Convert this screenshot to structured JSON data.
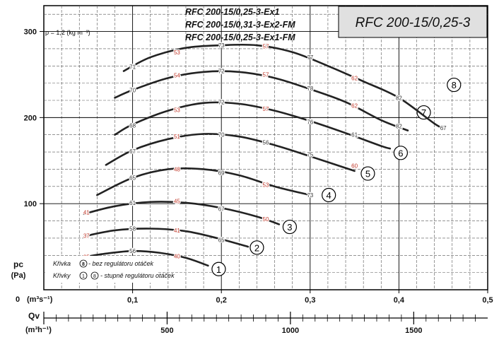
{
  "chart_data": {
    "type": "line",
    "title": "RFC 200-15/0,25-3",
    "variants": [
      "RFC 200-15/0,25-3-Ex1",
      "RFC 200-15/0,31-3-Ex2-FM",
      "RFC 200-15/0,25-3-Ex1-FM"
    ],
    "density_note": "ρ = 1,2 (kg m⁻³)",
    "xlabel": "(m³s⁻¹)",
    "x_symbol": "0",
    "x2_symbol": "Qv",
    "x2label": "(m³h⁻¹)",
    "ylabel_symbol": "pc",
    "ylabel_unit": "(Pa)",
    "xlim": [
      0,
      0.5
    ],
    "ylim": [
      0,
      330
    ],
    "x_ticks": [
      "0,1",
      "0,2",
      "0,3",
      "0,4",
      "0,5"
    ],
    "x_tick_values": [
      0.1,
      0.2,
      0.3,
      0.4,
      0.5
    ],
    "y_ticks": [
      "100",
      "200",
      "300"
    ],
    "y_tick_values": [
      100,
      200,
      300
    ],
    "x2_ticks": [
      "500",
      "1000",
      "1500"
    ],
    "x2_tick_values": [
      500,
      1000,
      1500
    ],
    "grid": true,
    "legend": {
      "line1_prefix": "Křivka",
      "line1_marker": "8",
      "line1_text": "- bez regulátoru otáček",
      "line2_prefix": "Křivky",
      "line2_marker_a": "1",
      "line2_marker_b": "8",
      "line2_text": "- stupně regulátoru otáček"
    },
    "series": [
      {
        "name": "1",
        "label_at": [
          0.197,
          24
        ],
        "points": [
          [
            0.045,
            38
          ],
          [
            0.07,
            42
          ],
          [
            0.1,
            45
          ],
          [
            0.13,
            43
          ],
          [
            0.16,
            37
          ],
          [
            0.185,
            28
          ]
        ],
        "labels": [
          {
            "text": "35",
            "x": 0.048,
            "y": 38
          },
          {
            "text": "56",
            "x": 0.1,
            "y": 45
          },
          {
            "text": "40",
            "x": 0.15,
            "y": 39
          }
        ]
      },
      {
        "name": "2",
        "label_at": [
          0.24,
          49
        ],
        "points": [
          [
            0.045,
            62
          ],
          [
            0.08,
            69
          ],
          [
            0.12,
            71
          ],
          [
            0.16,
            68
          ],
          [
            0.195,
            60
          ],
          [
            0.23,
            50
          ]
        ],
        "labels": [
          {
            "text": "37",
            "x": 0.048,
            "y": 63
          },
          {
            "text": "58",
            "x": 0.1,
            "y": 71
          },
          {
            "text": "41",
            "x": 0.15,
            "y": 69
          },
          {
            "text": "65",
            "x": 0.2,
            "y": 58
          }
        ]
      },
      {
        "name": "3",
        "label_at": [
          0.277,
          73
        ],
        "points": [
          [
            0.045,
            88
          ],
          [
            0.08,
            97
          ],
          [
            0.12,
            102
          ],
          [
            0.16,
            101
          ],
          [
            0.2,
            95
          ],
          [
            0.24,
            85
          ],
          [
            0.265,
            76
          ]
        ],
        "labels": [
          {
            "text": "41",
            "x": 0.048,
            "y": 90
          },
          {
            "text": "61",
            "x": 0.1,
            "y": 101
          },
          {
            "text": "45",
            "x": 0.15,
            "y": 103
          },
          {
            "text": "67",
            "x": 0.2,
            "y": 94
          },
          {
            "text": "50",
            "x": 0.25,
            "y": 82
          }
        ]
      },
      {
        "name": "4",
        "label_at": [
          0.321,
          110
        ],
        "points": [
          [
            0.06,
            110
          ],
          [
            0.1,
            130
          ],
          [
            0.14,
            140
          ],
          [
            0.18,
            140
          ],
          [
            0.22,
            133
          ],
          [
            0.26,
            120
          ],
          [
            0.3,
            110
          ]
        ],
        "labels": [
          {
            "text": "65",
            "x": 0.1,
            "y": 130
          },
          {
            "text": "48",
            "x": 0.15,
            "y": 140
          },
          {
            "text": "69",
            "x": 0.2,
            "y": 136
          },
          {
            "text": "53",
            "x": 0.25,
            "y": 122
          },
          {
            "text": "73",
            "x": 0.3,
            "y": 110
          }
        ]
      },
      {
        "name": "5",
        "label_at": [
          0.365,
          135
        ],
        "points": [
          [
            0.07,
            145
          ],
          [
            0.1,
            162
          ],
          [
            0.14,
            175
          ],
          [
            0.18,
            181
          ],
          [
            0.22,
            178
          ],
          [
            0.26,
            168
          ],
          [
            0.3,
            155
          ],
          [
            0.35,
            138
          ]
        ],
        "labels": [
          {
            "text": "67",
            "x": 0.1,
            "y": 161
          },
          {
            "text": "51",
            "x": 0.15,
            "y": 178
          },
          {
            "text": "70",
            "x": 0.2,
            "y": 180
          },
          {
            "text": "56",
            "x": 0.25,
            "y": 171
          },
          {
            "text": "75",
            "x": 0.3,
            "y": 157
          },
          {
            "text": "60",
            "x": 0.35,
            "y": 144
          }
        ]
      },
      {
        "name": "6",
        "label_at": [
          0.402,
          159
        ],
        "points": [
          [
            0.08,
            180
          ],
          [
            0.1,
            192
          ],
          [
            0.14,
            208
          ],
          [
            0.18,
            217
          ],
          [
            0.22,
            216
          ],
          [
            0.26,
            208
          ],
          [
            0.3,
            196
          ],
          [
            0.34,
            182
          ],
          [
            0.38,
            167
          ],
          [
            0.39,
            164
          ]
        ],
        "labels": [
          {
            "text": "68",
            "x": 0.1,
            "y": 191
          },
          {
            "text": "53",
            "x": 0.15,
            "y": 209
          },
          {
            "text": "72",
            "x": 0.2,
            "y": 218
          },
          {
            "text": "57",
            "x": 0.25,
            "y": 210
          },
          {
            "text": "76",
            "x": 0.3,
            "y": 195
          },
          {
            "text": "61",
            "x": 0.35,
            "y": 180
          }
        ]
      },
      {
        "name": "7",
        "label_at": [
          0.428,
          206
        ],
        "points": [
          [
            0.08,
            223
          ],
          [
            0.1,
            232
          ],
          [
            0.14,
            246
          ],
          [
            0.18,
            253
          ],
          [
            0.22,
            253
          ],
          [
            0.26,
            246
          ],
          [
            0.3,
            233
          ],
          [
            0.34,
            218
          ],
          [
            0.38,
            197
          ],
          [
            0.41,
            185
          ]
        ],
        "labels": [
          {
            "text": "70",
            "x": 0.1,
            "y": 232
          },
          {
            "text": "54",
            "x": 0.15,
            "y": 249
          },
          {
            "text": "72",
            "x": 0.2,
            "y": 254
          },
          {
            "text": "57",
            "x": 0.25,
            "y": 250
          },
          {
            "text": "78",
            "x": 0.3,
            "y": 234
          },
          {
            "text": "62",
            "x": 0.35,
            "y": 214
          },
          {
            "text": "82",
            "x": 0.4,
            "y": 190
          }
        ]
      },
      {
        "name": "8",
        "label_at": [
          0.462,
          238
        ],
        "points": [
          [
            0.09,
            254
          ],
          [
            0.12,
            270
          ],
          [
            0.16,
            281
          ],
          [
            0.2,
            284
          ],
          [
            0.24,
            284
          ],
          [
            0.28,
            276
          ],
          [
            0.32,
            260
          ],
          [
            0.36,
            242
          ],
          [
            0.4,
            223
          ],
          [
            0.44,
            193
          ],
          [
            0.45,
            188
          ]
        ],
        "labels": [
          {
            "text": "71",
            "x": 0.1,
            "y": 259
          },
          {
            "text": "53",
            "x": 0.15,
            "y": 276
          },
          {
            "text": "73",
            "x": 0.2,
            "y": 284
          },
          {
            "text": "57",
            "x": 0.25,
            "y": 283
          },
          {
            "text": "77",
            "x": 0.3,
            "y": 270
          },
          {
            "text": "62",
            "x": 0.35,
            "y": 246
          },
          {
            "text": "82",
            "x": 0.4,
            "y": 223
          },
          {
            "text": "67",
            "x": 0.45,
            "y": 188
          }
        ]
      }
    ]
  }
}
